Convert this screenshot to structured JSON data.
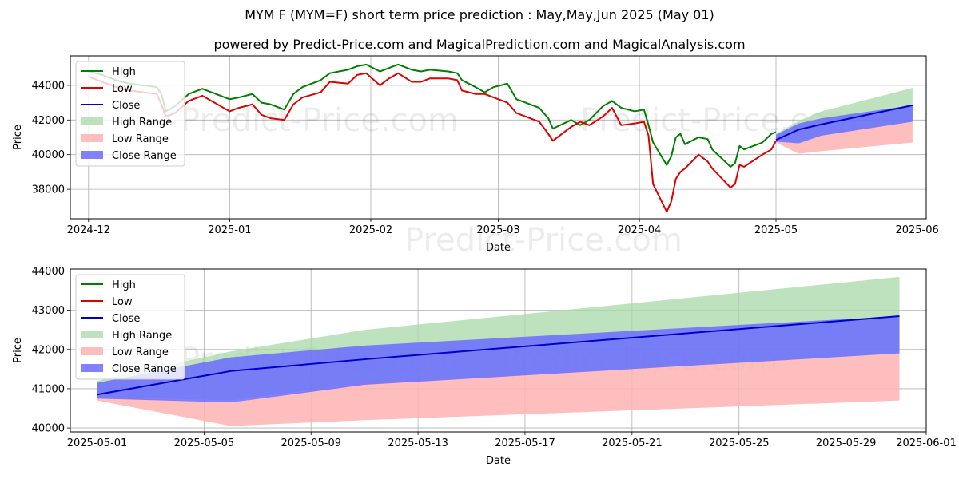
{
  "title": "MYM F (MYM=F) short term price prediction : May,May,Jun 2025 (May 01)",
  "subtitle": "powered by Predict-Price.com and MagicalPrediction.com and MagicalAnalysis.com",
  "watermark": "Predict-Price.com",
  "colors": {
    "high": "#008000",
    "low": "#e00000",
    "close": "#0000cc",
    "high_range": "#a8d8a8",
    "low_range": "#ffb3b3",
    "close_range": "#6b6bff"
  },
  "chart_data": [
    {
      "type": "line",
      "xlabel": "Date",
      "ylabel": "Price",
      "x_ticks": [
        "2024-12",
        "2025-01",
        "2025-02",
        "2025-03",
        "2025-04",
        "2025-05",
        "2025-06"
      ],
      "y_ticks": [
        "38000",
        "40000",
        "42000",
        "44000"
      ],
      "xlim": [
        "2024-11-27",
        "2025-06-03"
      ],
      "ylim": [
        36300,
        45700
      ],
      "grid": true,
      "legend": [
        "High",
        "Low",
        "Close",
        "High Range",
        "Low Range",
        "Close Range"
      ],
      "legend_position": "top-left",
      "series": [
        {
          "name": "High",
          "values": [
            [
              "2024-12-01",
              44800
            ],
            [
              "2024-12-04",
              44600
            ],
            [
              "2024-12-07",
              44300
            ],
            [
              "2024-12-10",
              44100
            ],
            [
              "2024-12-13",
              44000
            ],
            [
              "2024-12-16",
              43900
            ],
            [
              "2024-12-17",
              43500
            ],
            [
              "2024-12-18",
              42500
            ],
            [
              "2024-12-20",
              42800
            ],
            [
              "2024-12-23",
              43500
            ],
            [
              "2024-12-26",
              43800
            ],
            [
              "2024-12-30",
              43400
            ],
            [
              "2025-01-01",
              43200
            ],
            [
              "2025-01-03",
              43300
            ],
            [
              "2025-01-06",
              43500
            ],
            [
              "2025-01-08",
              43000
            ],
            [
              "2025-01-10",
              42900
            ],
            [
              "2025-01-13",
              42600
            ],
            [
              "2025-01-15",
              43500
            ],
            [
              "2025-01-17",
              43900
            ],
            [
              "2025-01-21",
              44300
            ],
            [
              "2025-01-23",
              44700
            ],
            [
              "2025-01-27",
              44900
            ],
            [
              "2025-01-29",
              45100
            ],
            [
              "2025-01-31",
              45200
            ],
            [
              "2025-02-03",
              44800
            ],
            [
              "2025-02-05",
              45000
            ],
            [
              "2025-02-07",
              45200
            ],
            [
              "2025-02-10",
              44900
            ],
            [
              "2025-02-12",
              44800
            ],
            [
              "2025-02-14",
              44900
            ],
            [
              "2025-02-18",
              44800
            ],
            [
              "2025-02-20",
              44700
            ],
            [
              "2025-02-21",
              44300
            ],
            [
              "2025-02-24",
              43900
            ],
            [
              "2025-02-26",
              43600
            ],
            [
              "2025-02-28",
              43900
            ],
            [
              "2025-03-03",
              44100
            ],
            [
              "2025-03-05",
              43200
            ],
            [
              "2025-03-07",
              43000
            ],
            [
              "2025-03-10",
              42700
            ],
            [
              "2025-03-12",
              42100
            ],
            [
              "2025-03-13",
              41500
            ],
            [
              "2025-03-17",
              42000
            ],
            [
              "2025-03-19",
              41700
            ],
            [
              "2025-03-21",
              42000
            ],
            [
              "2025-03-24",
              42800
            ],
            [
              "2025-03-26",
              43100
            ],
            [
              "2025-03-28",
              42700
            ],
            [
              "2025-03-31",
              42500
            ],
            [
              "2025-04-02",
              42600
            ],
            [
              "2025-04-03",
              41700
            ],
            [
              "2025-04-04",
              40700
            ],
            [
              "2025-04-07",
              39400
            ],
            [
              "2025-04-08",
              39900
            ],
            [
              "2025-04-09",
              41000
            ],
            [
              "2025-04-10",
              41200
            ],
            [
              "2025-04-11",
              40600
            ],
            [
              "2025-04-14",
              41000
            ],
            [
              "2025-04-16",
              40900
            ],
            [
              "2025-04-17",
              40300
            ],
            [
              "2025-04-21",
              39300
            ],
            [
              "2025-04-22",
              39500
            ],
            [
              "2025-04-23",
              40500
            ],
            [
              "2025-04-24",
              40300
            ],
            [
              "2025-04-28",
              40700
            ],
            [
              "2025-04-30",
              41200
            ],
            [
              "2025-05-01",
              41300
            ]
          ]
        },
        {
          "name": "Low",
          "values": [
            [
              "2024-12-01",
              44500
            ],
            [
              "2024-12-04",
              44200
            ],
            [
              "2024-12-07",
              43900
            ],
            [
              "2024-12-10",
              43700
            ],
            [
              "2024-12-13",
              43600
            ],
            [
              "2024-12-16",
              43500
            ],
            [
              "2024-12-17",
              42900
            ],
            [
              "2024-12-18",
              42200
            ],
            [
              "2024-12-20",
              42400
            ],
            [
              "2024-12-23",
              43100
            ],
            [
              "2024-12-26",
              43400
            ],
            [
              "2024-12-30",
              42800
            ],
            [
              "2025-01-01",
              42500
            ],
            [
              "2025-01-03",
              42700
            ],
            [
              "2025-01-06",
              42900
            ],
            [
              "2025-01-08",
              42300
            ],
            [
              "2025-01-10",
              42100
            ],
            [
              "2025-01-13",
              42000
            ],
            [
              "2025-01-15",
              42900
            ],
            [
              "2025-01-17",
              43300
            ],
            [
              "2025-01-21",
              43600
            ],
            [
              "2025-01-23",
              44200
            ],
            [
              "2025-01-27",
              44100
            ],
            [
              "2025-01-29",
              44600
            ],
            [
              "2025-01-31",
              44700
            ],
            [
              "2025-02-03",
              44000
            ],
            [
              "2025-02-05",
              44400
            ],
            [
              "2025-02-07",
              44700
            ],
            [
              "2025-02-10",
              44200
            ],
            [
              "2025-02-12",
              44200
            ],
            [
              "2025-02-14",
              44400
            ],
            [
              "2025-02-18",
              44400
            ],
            [
              "2025-02-20",
              44300
            ],
            [
              "2025-02-21",
              43700
            ],
            [
              "2025-02-24",
              43500
            ],
            [
              "2025-02-26",
              43500
            ],
            [
              "2025-02-28",
              43300
            ],
            [
              "2025-03-03",
              43000
            ],
            [
              "2025-03-05",
              42400
            ],
            [
              "2025-03-07",
              42200
            ],
            [
              "2025-03-10",
              41900
            ],
            [
              "2025-03-12",
              41200
            ],
            [
              "2025-03-13",
              40800
            ],
            [
              "2025-03-17",
              41600
            ],
            [
              "2025-03-19",
              41900
            ],
            [
              "2025-03-21",
              41700
            ],
            [
              "2025-03-24",
              42200
            ],
            [
              "2025-03-26",
              42700
            ],
            [
              "2025-03-28",
              41700
            ],
            [
              "2025-03-31",
              41800
            ],
            [
              "2025-04-02",
              41900
            ],
            [
              "2025-04-03",
              41100
            ],
            [
              "2025-04-04",
              38300
            ],
            [
              "2025-04-07",
              36700
            ],
            [
              "2025-04-08",
              37300
            ],
            [
              "2025-04-09",
              38600
            ],
            [
              "2025-04-10",
              39000
            ],
            [
              "2025-04-11",
              39200
            ],
            [
              "2025-04-14",
              40000
            ],
            [
              "2025-04-16",
              39600
            ],
            [
              "2025-04-17",
              39200
            ],
            [
              "2025-04-21",
              38100
            ],
            [
              "2025-04-22",
              38300
            ],
            [
              "2025-04-23",
              39400
            ],
            [
              "2025-04-24",
              39300
            ],
            [
              "2025-04-28",
              40000
            ],
            [
              "2025-04-30",
              40300
            ],
            [
              "2025-05-01",
              40800
            ]
          ]
        },
        {
          "name": "Close",
          "values": [
            [
              "2025-05-01",
              40850
            ],
            [
              "2025-05-06",
              41450
            ],
            [
              "2025-05-11",
              41750
            ],
            [
              "2025-05-31",
              42850
            ]
          ]
        },
        {
          "name": "High Range",
          "band": [
            [
              "2025-05-01",
              40800,
              41200
            ],
            [
              "2025-05-06",
              40700,
              41950
            ],
            [
              "2025-05-11",
              41150,
              42500
            ],
            [
              "2025-05-31",
              41900,
              43850
            ]
          ]
        },
        {
          "name": "Low Range",
          "band": [
            [
              "2025-05-01",
              40700,
              40800
            ],
            [
              "2025-05-06",
              40050,
              40650
            ],
            [
              "2025-05-11",
              40200,
              41150
            ],
            [
              "2025-05-31",
              40700,
              41900
            ]
          ]
        },
        {
          "name": "Close Range",
          "band": [
            [
              "2025-05-01",
              40750,
              41150
            ],
            [
              "2025-05-06",
              40650,
              41800
            ],
            [
              "2025-05-11",
              41100,
              42100
            ],
            [
              "2025-05-31",
              41900,
              42850
            ]
          ]
        }
      ]
    },
    {
      "type": "line",
      "xlabel": "Date",
      "ylabel": "Price",
      "x_ticks": [
        "2025-05-01",
        "2025-05-05",
        "2025-05-09",
        "2025-05-13",
        "2025-05-17",
        "2025-05-21",
        "2025-05-25",
        "2025-05-29",
        "2025-06-01"
      ],
      "y_ticks": [
        "40000",
        "41000",
        "42000",
        "43000",
        "44000"
      ],
      "xlim": [
        "2025-04-30",
        "2025-06-01"
      ],
      "ylim": [
        39900,
        44050
      ],
      "grid": true,
      "legend": [
        "High",
        "Low",
        "Close",
        "High Range",
        "Low Range",
        "Close Range"
      ],
      "legend_position": "top-left",
      "series": [
        {
          "name": "Close",
          "values": [
            [
              "2025-05-01",
              40850
            ],
            [
              "2025-05-06",
              41450
            ],
            [
              "2025-05-11",
              41750
            ],
            [
              "2025-05-31",
              42850
            ]
          ]
        },
        {
          "name": "High Range",
          "band": [
            [
              "2025-05-01",
              40800,
              41200
            ],
            [
              "2025-05-06",
              40700,
              41950
            ],
            [
              "2025-05-11",
              41150,
              42500
            ],
            [
              "2025-05-31",
              41900,
              43850
            ]
          ]
        },
        {
          "name": "Low Range",
          "band": [
            [
              "2025-05-01",
              40700,
              40800
            ],
            [
              "2025-05-06",
              40050,
              40650
            ],
            [
              "2025-05-11",
              40200,
              41150
            ],
            [
              "2025-05-31",
              40700,
              41900
            ]
          ]
        },
        {
          "name": "Close Range",
          "band": [
            [
              "2025-05-01",
              40750,
              41150
            ],
            [
              "2025-05-06",
              40650,
              41800
            ],
            [
              "2025-05-11",
              41100,
              42100
            ],
            [
              "2025-05-31",
              41900,
              42850
            ]
          ]
        }
      ]
    }
  ]
}
